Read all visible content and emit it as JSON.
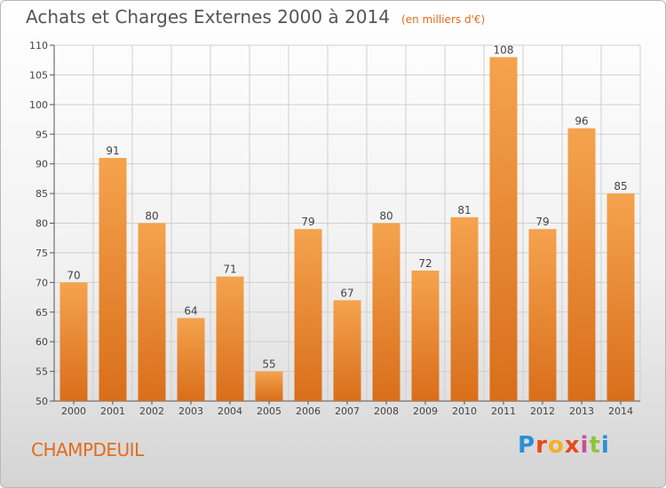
{
  "header": {
    "title": "Achats et Charges Externes 2000 à 2014",
    "unit": "(en milliers d'€)"
  },
  "footer": {
    "commune": "CHAMPDEUIL",
    "logo_text": "Proxiti"
  },
  "colors": {
    "bar_light": "#f5a34e",
    "bar_dark": "#d96e1a",
    "accent": "#e36b1c"
  },
  "chart_data": {
    "type": "bar",
    "categories": [
      "2000",
      "2001",
      "2002",
      "2003",
      "2004",
      "2005",
      "2006",
      "2007",
      "2008",
      "2009",
      "2010",
      "2011",
      "2012",
      "2013",
      "2014"
    ],
    "values": [
      70,
      91,
      80,
      64,
      71,
      55,
      79,
      67,
      80,
      72,
      81,
      108,
      79,
      96,
      85
    ],
    "title": "Achats et Charges Externes 2000 à 2014",
    "subtitle": "(en milliers d'€)",
    "ylim": [
      50,
      110
    ],
    "yticks": [
      50,
      55,
      60,
      65,
      70,
      75,
      80,
      85,
      90,
      95,
      100,
      105,
      110
    ],
    "grid": true,
    "data_labels": true
  }
}
